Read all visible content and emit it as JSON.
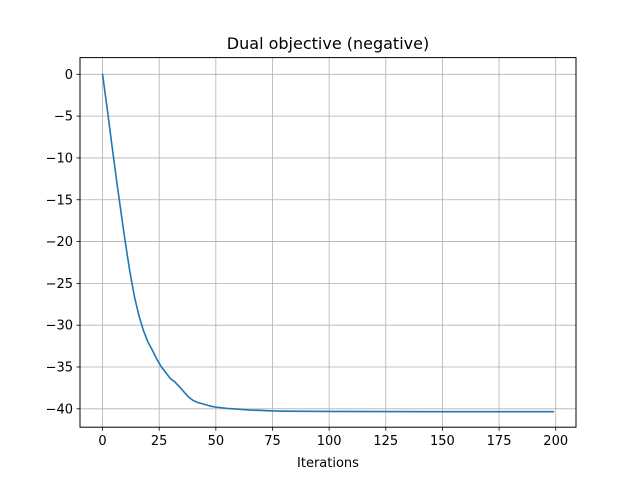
{
  "chart_data": {
    "type": "line",
    "title": "Dual objective (negative)",
    "xlabel": "Iterations",
    "ylabel": "",
    "xlim": [
      -9.95,
      208.95
    ],
    "ylim": [
      -42.2,
      2.0
    ],
    "grid": true,
    "x_ticks": [
      0,
      25,
      50,
      75,
      100,
      125,
      150,
      175,
      200
    ],
    "y_ticks": [
      0,
      -5,
      -10,
      -15,
      -20,
      -25,
      -30,
      -35,
      -40
    ],
    "x_tick_labels": [
      "0",
      "25",
      "50",
      "75",
      "100",
      "125",
      "150",
      "175",
      "200"
    ],
    "y_tick_labels": [
      "0",
      "−5",
      "−10",
      "−15",
      "−20",
      "−25",
      "−30",
      "−35",
      "−40"
    ],
    "series": [
      {
        "color": "#1f77b4",
        "x": [
          0,
          2,
          4,
          6,
          8,
          10,
          12,
          14,
          16,
          18,
          20,
          22,
          24,
          26,
          28,
          30,
          32,
          34,
          36,
          38,
          40,
          42,
          44,
          46,
          48,
          50,
          55,
          60,
          65,
          70,
          75,
          80,
          90,
          100,
          125,
          150,
          175,
          199
        ],
        "y": [
          0,
          -4.0,
          -8.2,
          -12.3,
          -16.2,
          -20.0,
          -23.5,
          -26.5,
          -28.8,
          -30.6,
          -32.0,
          -33.0,
          -34.1,
          -35.0,
          -35.7,
          -36.4,
          -36.8,
          -37.4,
          -38.0,
          -38.6,
          -39.0,
          -39.25,
          -39.4,
          -39.55,
          -39.7,
          -39.8,
          -39.95,
          -40.05,
          -40.15,
          -40.2,
          -40.25,
          -40.28,
          -40.3,
          -40.32,
          -40.33,
          -40.34,
          -40.34,
          -40.35
        ]
      }
    ]
  }
}
